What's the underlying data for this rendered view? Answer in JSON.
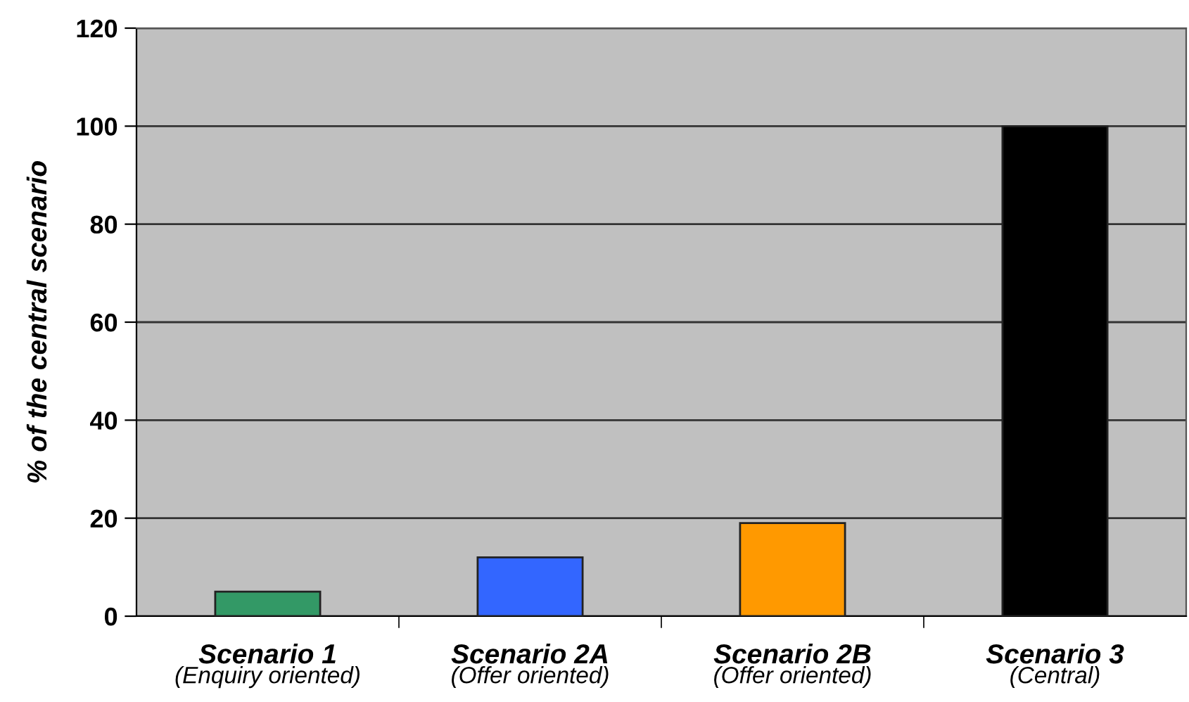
{
  "chart_data": {
    "type": "bar",
    "ylabel": "% of the central scenario",
    "categories": [
      "Scenario 1\n(Enquiry oriented)",
      "Scenario 2A\n(Offer oriented)",
      "Scenario 2B\n(Offer oriented)",
      "Scenario 3\n(Central)"
    ],
    "values": [
      5,
      12,
      19,
      100
    ],
    "colors": [
      "#339966",
      "#3366ff",
      "#ff9900",
      "#000000"
    ],
    "ylim": [
      0,
      120
    ],
    "yticks": [
      0,
      20,
      40,
      60,
      80,
      100,
      120
    ],
    "grid": "y"
  }
}
